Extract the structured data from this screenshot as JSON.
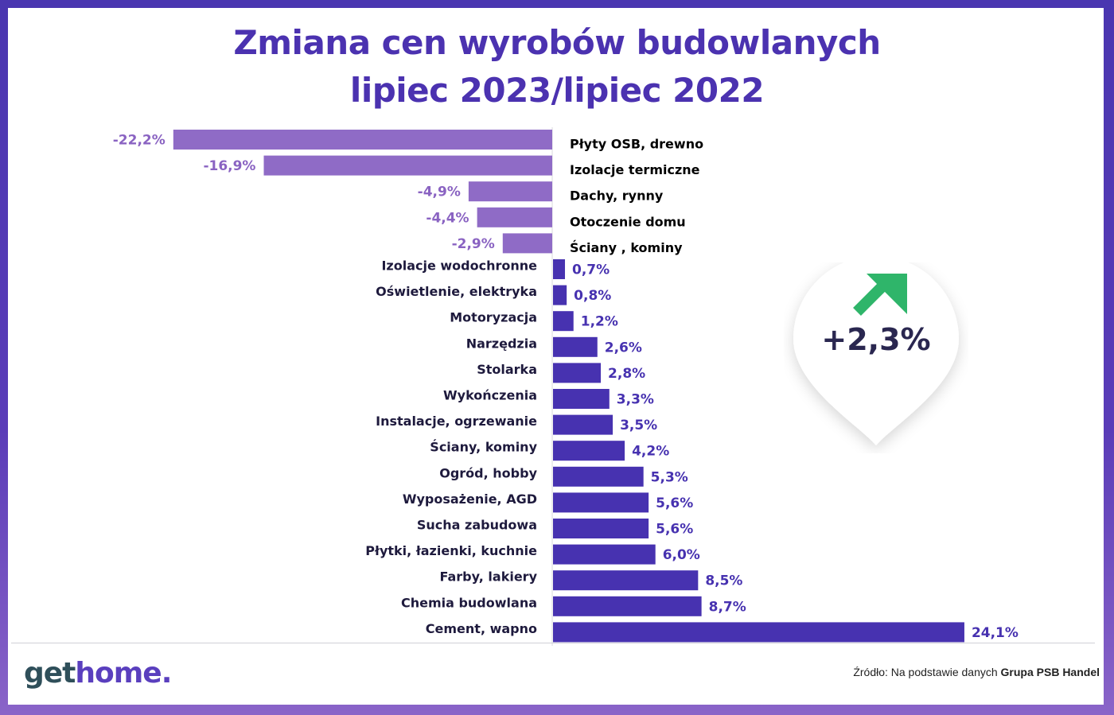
{
  "title": {
    "line1": "Zmiana cen wyrobów budowlanych",
    "line2": "lipiec 2023/lipiec 2022"
  },
  "badge": {
    "value": "+2,3%",
    "icon": "arrow-up-right-icon",
    "icon_color": "#2fb56a"
  },
  "footer": {
    "logo_part1": "get",
    "logo_part2": "home.",
    "source_prefix": "Źródło: Na podstawie danych ",
    "source_bold": "Grupa PSB Handel"
  },
  "colors": {
    "negative": "#8f6bc6",
    "positive": "#4732b0",
    "negative_label": "#8a63c2",
    "positive_label": "#4732b0"
  },
  "chart_data": {
    "type": "bar",
    "orientation": "horizontal",
    "unit": "%",
    "title": "Zmiana cen wyrobów budowlanych lipiec 2023/lipiec 2022",
    "categories": [
      "Płyty OSB, drewno",
      "Izolacje termiczne",
      "Dachy, rynny",
      "Otoczenie domu",
      "Ściany , kominy",
      "Izolacje wodochronne",
      "Oświetlenie, elektryka",
      "Motoryzacja",
      "Narzędzia",
      "Stolarka",
      "Wykończenia",
      "Instalacje, ogrzewanie",
      "Ściany, kominy",
      "Ogród, hobby",
      "Wyposażenie, AGD",
      "Sucha zabudowa",
      "Płytki, łazienki, kuchnie",
      "Farby, lakiery",
      "Chemia budowlana",
      "Cement, wapno"
    ],
    "values": [
      -22.2,
      -16.9,
      -4.9,
      -4.4,
      -2.9,
      0.7,
      0.8,
      1.2,
      2.6,
      2.8,
      3.3,
      3.5,
      4.2,
      5.3,
      5.6,
      5.6,
      6.0,
      8.5,
      8.7,
      24.1
    ],
    "value_labels": [
      "-22,2%",
      "-16,9%",
      "-4,9%",
      "-4,4%",
      "-2,9%",
      "0,7%",
      "0,8%",
      "1,2%",
      "2,6%",
      "2,8%",
      "3,3%",
      "3,5%",
      "4,2%",
      "5,3%",
      "5,6%",
      "5,6%",
      "6,0%",
      "8,5%",
      "8,7%",
      "24,1%"
    ]
  }
}
